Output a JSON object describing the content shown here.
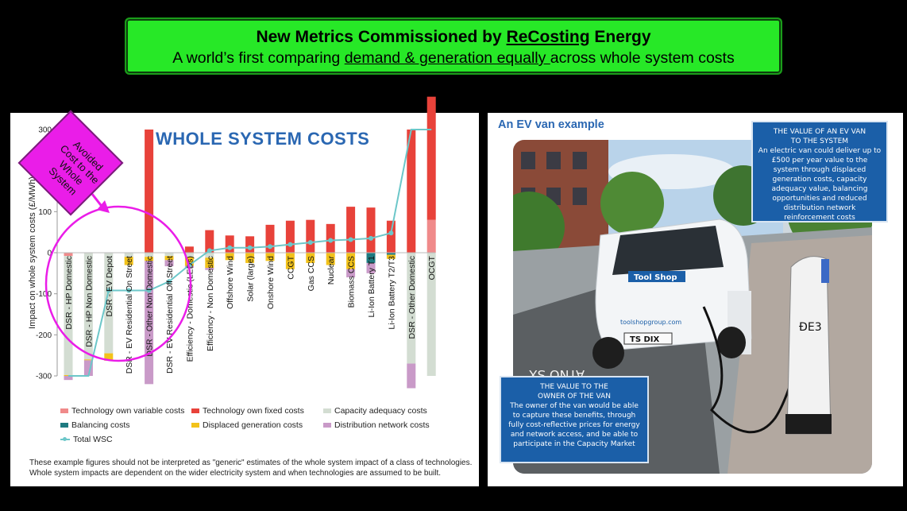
{
  "banner": {
    "title_prefix": "New Metrics Commissioned by ",
    "title_brand": "ReCosting",
    "title_suffix": " Energy",
    "subtitle_prefix": "A world’s first comparing ",
    "subtitle_underlined": "demand & generation equally ",
    "subtitle_suffix": "across whole system costs"
  },
  "callout": {
    "lines": [
      "Avoided",
      "Cost to the",
      "Whole",
      "System"
    ],
    "color": "#ea1de8"
  },
  "chart_data": {
    "type": "bar",
    "title": "WHOLE SYSTEM COSTS",
    "ylabel": "Impact on whole system costs (£/MWh)",
    "ylim": [
      -300,
      300
    ],
    "yticks": [
      "300",
      "200",
      "100",
      "0",
      "-100",
      "-200",
      "-300"
    ],
    "ytick_values": [
      300,
      200,
      100,
      0,
      -100,
      -200,
      -300
    ],
    "categories": [
      "DSR - HP Domestic",
      "DSR - HP Non Domestic",
      "DSR - EV Depot",
      "DSR - EV Residential On Street",
      "DSR - Other Non Domestic",
      "DSR - EV Residential Off Street",
      "Efficiency - Domestic (LEDs)",
      "Efficiency - Non Domestic",
      "Offshore Wind",
      "Solar (large)",
      "Onshore Wind",
      "CCGT",
      "Gas CCS",
      "Nuclear",
      "Biomass CCS",
      "Li-Ion Battery T1",
      "Li-Ion Battery T2/T3",
      "DSR - Other Domestic",
      "OCGT"
    ],
    "series": [
      {
        "name": "Technology own variable costs",
        "color": "#f08a8a",
        "values": [
          -8,
          0,
          0,
          0,
          0,
          0,
          0,
          0,
          0,
          0,
          0,
          0,
          0,
          0,
          0,
          0,
          0,
          0,
          80
        ]
      },
      {
        "name": "Technology own fixed costs",
        "color": "#e8423a",
        "values": [
          0,
          0,
          0,
          0,
          300,
          0,
          15,
          55,
          42,
          40,
          68,
          78,
          80,
          70,
          112,
          110,
          78,
          300,
          300
        ]
      },
      {
        "name": "Capacity adequacy costs",
        "color": "#d3ddd2",
        "values": [
          -290,
          -260,
          -245,
          -10,
          -10,
          -8,
          -10,
          -12,
          0,
          0,
          0,
          0,
          0,
          0,
          0,
          0,
          0,
          -270,
          -300
        ]
      },
      {
        "name": "Balancing costs",
        "color": "#1e7a80",
        "values": [
          0,
          0,
          0,
          0,
          0,
          0,
          0,
          0,
          0,
          0,
          0,
          0,
          0,
          0,
          0,
          -25,
          -5,
          0,
          0
        ]
      },
      {
        "name": "Displaced generation costs",
        "color": "#f2c21a",
        "values": [
          -2,
          -2,
          -18,
          -20,
          -10,
          -10,
          -22,
          -25,
          -18,
          -25,
          -20,
          -40,
          -25,
          -30,
          -40,
          0,
          -10,
          0,
          0
        ]
      },
      {
        "name": "Distribution network costs",
        "color": "#c99ac8",
        "values": [
          -10,
          -38,
          0,
          0,
          -300,
          -15,
          -5,
          -5,
          0,
          0,
          0,
          0,
          0,
          0,
          -20,
          -25,
          0,
          -60,
          0
        ]
      }
    ],
    "total": {
      "name": "Total WSC",
      "color": "#6cc7c9",
      "values": [
        -300,
        -300,
        -92,
        -92,
        -92,
        -70,
        -30,
        5,
        12,
        12,
        15,
        20,
        25,
        30,
        32,
        35,
        48,
        300,
        300
      ]
    },
    "legend_position": "bottom",
    "grid": false
  },
  "note": {
    "line1": "These example figures should not be interpreted as \"generic\" estimates of the whole system impact of a class of technologies.",
    "line2": "Whole system impacts are dependent on the wider electricity system and when technologies are assumed to be built."
  },
  "ev": {
    "title": "An EV van example",
    "box1": {
      "heading1": "THE VALUE OF AN EV VAN",
      "heading2": "TO THE SYSTEM",
      "body": "An electric van could deliver up to £500 per year value to the system through displaced generation costs, capacity adequacy value, balancing opportunities and reduced distribution network reinforcement costs"
    },
    "box2": {
      "heading1": "THE VALUE TO THE",
      "heading2": "OWNER OF THE VAN",
      "body": "The owner of the van would be able to capture these benefits, through fully cost-reflective prices for energy and network access, and be able to participate in the Capacity Market"
    },
    "van_logo": "Tool Shop",
    "van_site": "toolshopgroup.com",
    "plate": "TS DIX",
    "road_marking": "ATNO SX",
    "charger_text": "ÐE3"
  }
}
